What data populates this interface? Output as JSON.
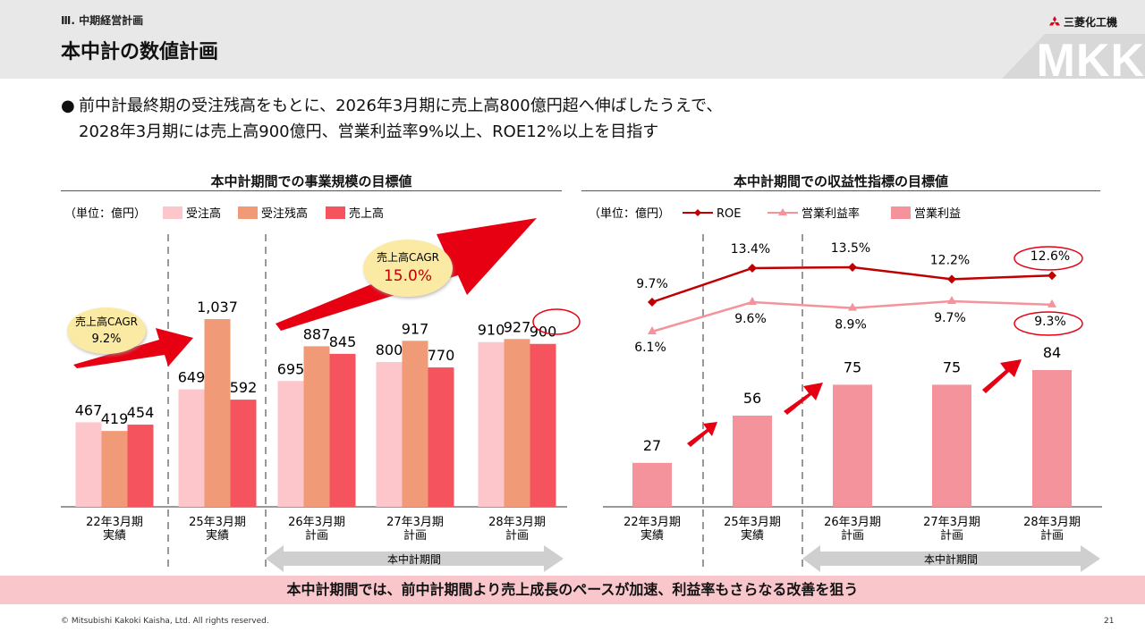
{
  "header": {
    "section_label": "Ⅲ. 中期経営計画",
    "title": "本中計の数値計画",
    "logo_text": "三菱化工機",
    "watermark": "MKK"
  },
  "summary": {
    "line1": "前中計最終期の受注残高をもとに、2026年3月期に売上高800億円超へ伸ばしたうえで、",
    "line2": "2028年3月期には売上高900億円、営業利益率9%以上、ROE12%以上を目指す"
  },
  "footer": {
    "banner": "本中計期間では、前中計期間より売上成長のペースが加速、利益率もさらなる改善を狙う",
    "copyright": "© Mitsubishi Kakoki Kaisha, Ltd. All rights reserved.",
    "page": "21"
  },
  "colors": {
    "orders": "#fcc6cb",
    "backlog": "#f09a78",
    "sales": "#f5535d",
    "roe": "#c00000",
    "margin": "#f4939c",
    "profit": "#f4939c",
    "arrow_red": "#e60012",
    "banner": "#f9c6cc"
  },
  "chart_data": [
    {
      "type": "bar",
      "title": "本中計期間での事業規模の目標値",
      "unit_label": "（単位：億円）",
      "categories": [
        "22年3月期\n実績",
        "25年3月期\n実績",
        "26年3月期\n計画",
        "27年3月期\n計画",
        "28年3月期\n計画"
      ],
      "series": [
        {
          "name": "受注高",
          "values": [
            467,
            649,
            695,
            800,
            910
          ],
          "labels": [
            "467",
            "649",
            "695",
            "800",
            "910"
          ]
        },
        {
          "name": "受注残高",
          "values": [
            419,
            1037,
            887,
            917,
            927
          ],
          "labels": [
            "419",
            "1,037",
            "887",
            "917",
            "927"
          ]
        },
        {
          "name": "売上高",
          "values": [
            454,
            592,
            845,
            770,
            900
          ],
          "labels": [
            "454",
            "592",
            "845",
            "770",
            "900"
          ]
        }
      ],
      "ylim": [
        0,
        1100
      ],
      "annotations": {
        "cagr_prev": {
          "label": "売上高CAGR",
          "value": "9.2%"
        },
        "cagr_plan": {
          "label": "売上高CAGR",
          "value": "15.0%"
        },
        "period_label": "本中計期間",
        "circled": "900"
      }
    },
    {
      "type": "bar",
      "title": "本中計期間での収益性指標の目標値",
      "unit_label": "（単位：億円）",
      "categories": [
        "22年3月期\n実績",
        "25年3月期\n実績",
        "26年3月期\n計画",
        "27年3月期\n計画",
        "28年3月期\n計画"
      ],
      "series": [
        {
          "name": "ROE",
          "kind": "line",
          "values": [
            9.7,
            13.4,
            13.5,
            12.2,
            12.6
          ],
          "labels": [
            "9.7%",
            "13.4%",
            "13.5%",
            "12.2%",
            "12.6%"
          ]
        },
        {
          "name": "営業利益率",
          "kind": "line",
          "values": [
            6.1,
            9.6,
            8.9,
            9.7,
            9.3
          ],
          "labels": [
            "6.1%",
            "9.6%",
            "8.9%",
            "9.7%",
            "9.3%"
          ]
        },
        {
          "name": "営業利益",
          "kind": "bar",
          "values": [
            27,
            56,
            75,
            75,
            84
          ],
          "labels": [
            "27",
            "56",
            "75",
            "75",
            "84"
          ]
        }
      ],
      "ylim": [
        0,
        100
      ],
      "annotations": {
        "period_label": "本中計期間",
        "circled": [
          "12.6%",
          "9.3%"
        ]
      }
    }
  ]
}
